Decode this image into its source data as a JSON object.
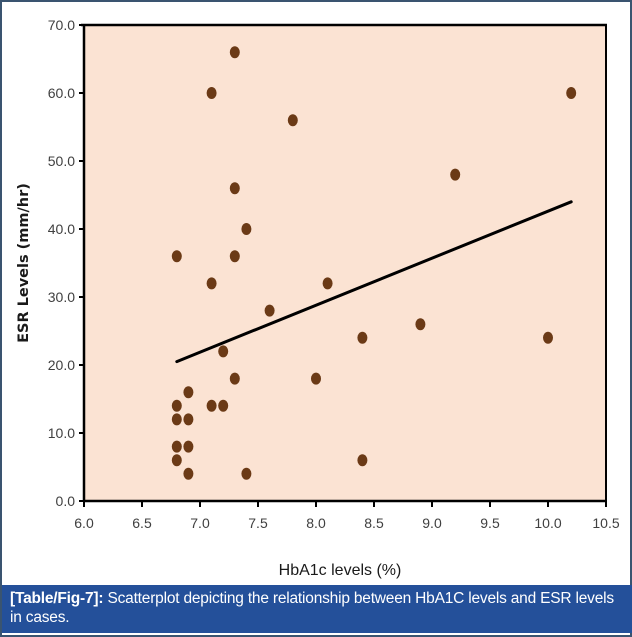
{
  "chart_data": {
    "type": "scatter",
    "title": "",
    "xlabel": "HbA1c levels (%)",
    "ylabel": "ESR Levels (mm/hr)",
    "xlim": [
      6.0,
      10.5
    ],
    "ylim": [
      0.0,
      70.0
    ],
    "x_ticks": [
      "6.0",
      "6.5",
      "7.0",
      "7.5",
      "8.0",
      "8.5",
      "9.0",
      "9.5",
      "10.0",
      "10.5"
    ],
    "x_tick_values": [
      6.0,
      6.5,
      7.0,
      7.5,
      8.0,
      8.5,
      9.0,
      9.5,
      10.0,
      10.5
    ],
    "y_ticks": [
      "0.0",
      "10.0",
      "20.0",
      "30.0",
      "40.0",
      "50.0",
      "60.0",
      "70.0"
    ],
    "y_tick_values": [
      0,
      10,
      20,
      30,
      40,
      50,
      60,
      70
    ],
    "grid": false,
    "legend": "none",
    "series": [
      {
        "name": "Cases",
        "points": [
          {
            "x": 7.3,
            "y": 66
          },
          {
            "x": 7.1,
            "y": 60
          },
          {
            "x": 10.2,
            "y": 60
          },
          {
            "x": 7.8,
            "y": 56
          },
          {
            "x": 9.2,
            "y": 48
          },
          {
            "x": 7.3,
            "y": 46
          },
          {
            "x": 7.4,
            "y": 40
          },
          {
            "x": 6.8,
            "y": 36
          },
          {
            "x": 7.3,
            "y": 36
          },
          {
            "x": 7.1,
            "y": 32
          },
          {
            "x": 8.1,
            "y": 32
          },
          {
            "x": 7.6,
            "y": 28
          },
          {
            "x": 8.9,
            "y": 26
          },
          {
            "x": 8.4,
            "y": 24
          },
          {
            "x": 10.0,
            "y": 24
          },
          {
            "x": 7.2,
            "y": 22
          },
          {
            "x": 7.3,
            "y": 18
          },
          {
            "x": 8.0,
            "y": 18
          },
          {
            "x": 6.9,
            "y": 16
          },
          {
            "x": 6.8,
            "y": 14
          },
          {
            "x": 7.1,
            "y": 14
          },
          {
            "x": 7.2,
            "y": 14
          },
          {
            "x": 6.8,
            "y": 12
          },
          {
            "x": 6.9,
            "y": 12
          },
          {
            "x": 6.8,
            "y": 8
          },
          {
            "x": 6.9,
            "y": 8
          },
          {
            "x": 6.8,
            "y": 6
          },
          {
            "x": 8.4,
            "y": 6
          },
          {
            "x": 6.9,
            "y": 4
          },
          {
            "x": 7.4,
            "y": 4
          }
        ]
      }
    ],
    "trendline": {
      "type": "linear",
      "start": {
        "x": 6.8,
        "y": 20.5
      },
      "end": {
        "x": 10.2,
        "y": 44.0
      }
    },
    "colors": {
      "plot_background": "#fbe3d3",
      "marker": "#6b3a16",
      "trendline": "#000000",
      "axis": "#000000"
    }
  },
  "caption": {
    "label": "[Table/Fig-7]:",
    "text": " Scatterplot depicting the relationship between HbA1C levels and ESR levels in cases."
  }
}
